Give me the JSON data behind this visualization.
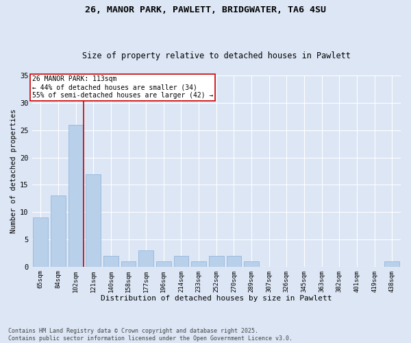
{
  "title1": "26, MANOR PARK, PAWLETT, BRIDGWATER, TA6 4SU",
  "title2": "Size of property relative to detached houses in Pawlett",
  "xlabel": "Distribution of detached houses by size in Pawlett",
  "ylabel": "Number of detached properties",
  "categories": [
    "65sqm",
    "84sqm",
    "102sqm",
    "121sqm",
    "140sqm",
    "158sqm",
    "177sqm",
    "196sqm",
    "214sqm",
    "233sqm",
    "252sqm",
    "270sqm",
    "289sqm",
    "307sqm",
    "326sqm",
    "345sqm",
    "363sqm",
    "382sqm",
    "401sqm",
    "419sqm",
    "438sqm"
  ],
  "values": [
    9,
    13,
    26,
    17,
    2,
    1,
    3,
    1,
    2,
    1,
    2,
    2,
    1,
    0,
    0,
    0,
    0,
    0,
    0,
    0,
    1
  ],
  "bar_color": "#b8d0ea",
  "bar_edge_color": "#8ab0d8",
  "bg_color": "#dce6f5",
  "plot_bg_color": "#dce6f5",
  "grid_color": "#ffffff",
  "vline_x": 2,
  "vline_color": "#cc0000",
  "annotation_text": "26 MANOR PARK: 113sqm\n← 44% of detached houses are smaller (34)\n55% of semi-detached houses are larger (42) →",
  "annotation_box_color": "#ffffff",
  "annotation_box_edge": "#cc0000",
  "footnote": "Contains HM Land Registry data © Crown copyright and database right 2025.\nContains public sector information licensed under the Open Government Licence v3.0.",
  "ylim": [
    0,
    35
  ],
  "yticks": [
    0,
    5,
    10,
    15,
    20,
    25,
    30,
    35
  ]
}
